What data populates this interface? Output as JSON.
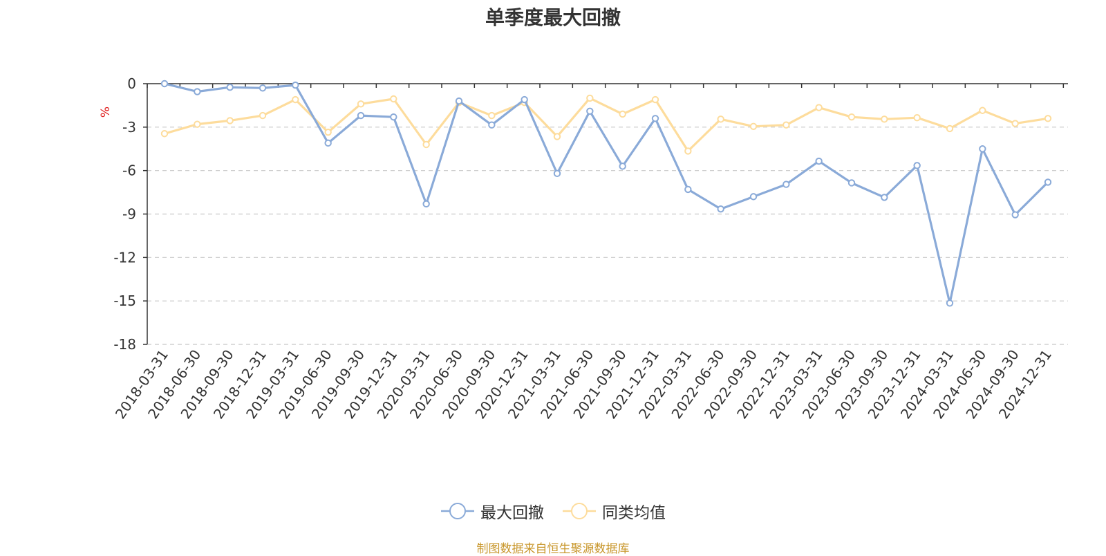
{
  "chart_data": {
    "type": "line",
    "title": "单季度最大回撤",
    "ylabel": "%",
    "ylim": [
      -18,
      0
    ],
    "yticks": [
      0,
      -3,
      -6,
      -9,
      -12,
      -15,
      -18
    ],
    "grid": true,
    "legend_position": "bottom-center",
    "x": [
      "2018-03-31",
      "2018-06-30",
      "2018-09-30",
      "2018-12-31",
      "2019-03-31",
      "2019-06-30",
      "2019-09-30",
      "2019-12-31",
      "2020-03-31",
      "2020-06-30",
      "2020-09-30",
      "2020-12-31",
      "2021-03-31",
      "2021-06-30",
      "2021-09-30",
      "2021-12-31",
      "2022-03-31",
      "2022-06-30",
      "2022-09-30",
      "2022-12-31",
      "2023-03-31",
      "2023-06-30",
      "2023-09-30",
      "2023-12-31",
      "2024-03-31",
      "2024-06-30",
      "2024-09-30",
      "2024-12-31"
    ],
    "series": [
      {
        "name": "最大回撤",
        "color": "#8aaad8",
        "values": [
          0,
          -0.55,
          -0.25,
          -0.3,
          -0.1,
          -4.1,
          -2.2,
          -2.3,
          -8.3,
          -1.2,
          -2.85,
          -1.1,
          -6.2,
          -1.9,
          -5.7,
          -2.4,
          -7.3,
          -8.65,
          -7.8,
          -6.95,
          -5.35,
          -6.85,
          -7.85,
          -5.65,
          -15.15,
          -4.5,
          -9.05,
          -6.8
        ]
      },
      {
        "name": "同类均值",
        "color": "#fddc9c",
        "values": [
          -3.45,
          -2.8,
          -2.55,
          -2.2,
          -1.1,
          -3.35,
          -1.4,
          -1.05,
          -4.2,
          -1.3,
          -2.2,
          -1.3,
          -3.65,
          -1.0,
          -2.1,
          -1.1,
          -4.65,
          -2.45,
          -2.95,
          -2.85,
          -1.65,
          -2.3,
          -2.45,
          -2.35,
          -3.1,
          -1.85,
          -2.75,
          -2.4
        ]
      }
    ]
  },
  "source_note": "制图数据来自恒生聚源数据库"
}
